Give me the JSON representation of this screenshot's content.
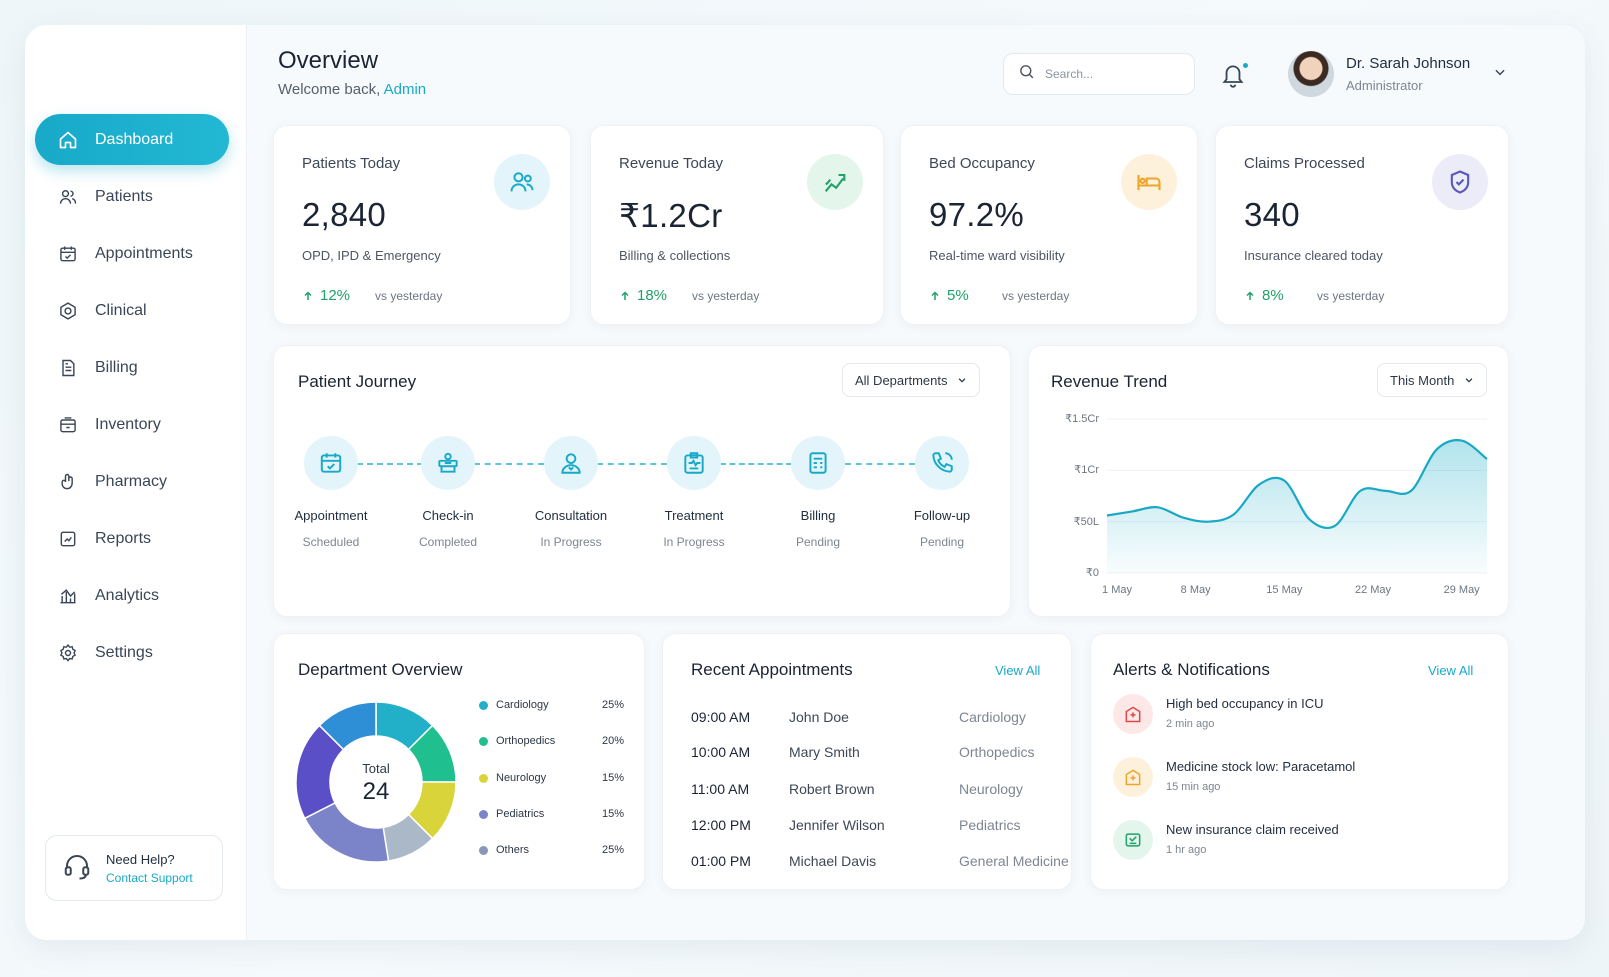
{
  "sidebar": {
    "items": [
      {
        "label": "Dashboard"
      },
      {
        "label": "Patients"
      },
      {
        "label": "Appointments"
      },
      {
        "label": "Clinical"
      },
      {
        "label": "Billing"
      },
      {
        "label": "Inventory"
      },
      {
        "label": "Pharmacy"
      },
      {
        "label": "Reports"
      },
      {
        "label": "Analytics"
      },
      {
        "label": "Settings"
      }
    ],
    "help": {
      "title": "Need Help?",
      "link": "Contact Support"
    }
  },
  "header": {
    "title": "Overview",
    "welcome": "Welcome back,",
    "welcome_name": "Admin",
    "search_placeholder": "Search...",
    "user_name": "Dr. Sarah Johnson",
    "user_role": "Administrator"
  },
  "stats": [
    {
      "label": "Patients Today",
      "value": "2,840",
      "desc": "OPD, IPD & Emergency",
      "trend": "12%",
      "vs": "vs yesterday"
    },
    {
      "label": "Revenue Today",
      "value": "₹1.2Cr",
      "desc": "Billing & collections",
      "trend": "18%",
      "vs": "vs yesterday"
    },
    {
      "label": "Bed Occupancy",
      "value": "97.2%",
      "desc": "Real-time ward visibility",
      "trend": "5%",
      "vs": "vs yesterday"
    },
    {
      "label": "Claims Processed",
      "value": "340",
      "desc": "Insurance cleared today",
      "trend": "8%",
      "vs": "vs yesterday"
    }
  ],
  "journey": {
    "title": "Patient Journey",
    "filter": "All Departments",
    "steps": [
      {
        "name": "Appointment",
        "status": "Scheduled"
      },
      {
        "name": "Check-in",
        "status": "Completed"
      },
      {
        "name": "Consultation",
        "status": "In Progress"
      },
      {
        "name": "Treatment",
        "status": "In Progress"
      },
      {
        "name": "Billing",
        "status": "Pending"
      },
      {
        "name": "Follow-up",
        "status": "Pending"
      }
    ]
  },
  "revenue": {
    "title": "Revenue Trend",
    "filter": "This Month"
  },
  "chart_data": {
    "type": "area",
    "title": "Revenue Trend",
    "xlabel": "",
    "ylabel": "",
    "y_ticks": [
      "₹1.5Cr",
      "₹1Cr",
      "₹50L",
      "₹0"
    ],
    "x_ticks": [
      "1 May",
      "8 May",
      "15 May",
      "22 May",
      "29 May"
    ],
    "ylim": [
      0,
      1.5
    ],
    "y_unit": "Cr",
    "x": [
      1,
      3,
      5,
      7,
      9,
      11,
      13,
      15,
      17,
      19,
      21,
      23,
      25,
      27,
      29,
      31
    ],
    "values": [
      0.56,
      0.6,
      0.64,
      0.54,
      0.5,
      0.57,
      0.86,
      0.9,
      0.52,
      0.46,
      0.8,
      0.8,
      0.8,
      1.2,
      1.29,
      1.11
    ]
  },
  "departments": {
    "title": "Department Overview",
    "total_label": "Total",
    "total_value": "24",
    "items": [
      {
        "name": "Cardiology",
        "pct": "25%",
        "color": "#22b0c9"
      },
      {
        "name": "Orthopedics",
        "pct": "20%",
        "color": "#1fbf8f"
      },
      {
        "name": "Neurology",
        "pct": "15%",
        "color": "#d8d43a"
      },
      {
        "name": "Pediatrics",
        "pct": "15%",
        "color": "#7b83c9"
      },
      {
        "name": "Others",
        "pct": "25%",
        "color": "#8a96b8"
      }
    ]
  },
  "appointments": {
    "title": "Recent Appointments",
    "view_all": "View All",
    "rows": [
      {
        "time": "09:00 AM",
        "patient": "John Doe",
        "dept": "Cardiology"
      },
      {
        "time": "10:00 AM",
        "patient": "Mary Smith",
        "dept": "Orthopedics"
      },
      {
        "time": "11:00 AM",
        "patient": "Robert Brown",
        "dept": "Neurology"
      },
      {
        "time": "12:00 PM",
        "patient": "Jennifer Wilson",
        "dept": "Pediatrics"
      },
      {
        "time": "01:00 PM",
        "patient": "Michael Davis",
        "dept": "General Medicine"
      }
    ]
  },
  "alerts": {
    "title": "Alerts & Notifications",
    "view_all": "View All",
    "items": [
      {
        "text": "High bed occupancy in ICU",
        "time": "2 min ago"
      },
      {
        "text": "Medicine stock low: Paracetamol",
        "time": "15 min ago"
      },
      {
        "text": "New insurance claim received",
        "time": "1 hr ago"
      }
    ]
  },
  "colors": {
    "accent": "#18a9c9",
    "positive": "#21a06a"
  }
}
